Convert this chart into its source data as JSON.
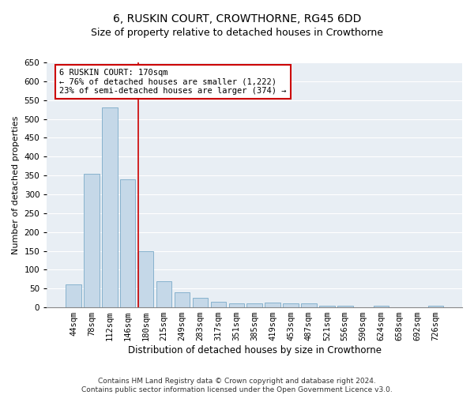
{
  "title": "6, RUSKIN COURT, CROWTHORNE, RG45 6DD",
  "subtitle": "Size of property relative to detached houses in Crowthorne",
  "xlabel": "Distribution of detached houses by size in Crowthorne",
  "ylabel": "Number of detached properties",
  "categories": [
    "44sqm",
    "78sqm",
    "112sqm",
    "146sqm",
    "180sqm",
    "215sqm",
    "249sqm",
    "283sqm",
    "317sqm",
    "351sqm",
    "385sqm",
    "419sqm",
    "453sqm",
    "487sqm",
    "521sqm",
    "556sqm",
    "590sqm",
    "624sqm",
    "658sqm",
    "692sqm",
    "726sqm"
  ],
  "values": [
    60,
    355,
    530,
    340,
    150,
    70,
    40,
    25,
    15,
    10,
    10,
    12,
    10,
    10,
    5,
    5,
    0,
    5,
    0,
    0,
    5
  ],
  "bar_color": "#c5d8e8",
  "bar_edge_color": "#7aaac8",
  "vline_color": "#cc0000",
  "vline_x_idx": 4,
  "annotation_text": "6 RUSKIN COURT: 170sqm\n← 76% of detached houses are smaller (1,222)\n23% of semi-detached houses are larger (374) →",
  "annotation_box_color": "#cc0000",
  "ylim": [
    0,
    650
  ],
  "yticks": [
    0,
    50,
    100,
    150,
    200,
    250,
    300,
    350,
    400,
    450,
    500,
    550,
    600,
    650
  ],
  "background_color": "#e8eef4",
  "footer": "Contains HM Land Registry data © Crown copyright and database right 2024.\nContains public sector information licensed under the Open Government Licence v3.0.",
  "title_fontsize": 10,
  "subtitle_fontsize": 9,
  "xlabel_fontsize": 8.5,
  "ylabel_fontsize": 8,
  "tick_fontsize": 7.5,
  "annotation_fontsize": 7.5,
  "footer_fontsize": 6.5
}
